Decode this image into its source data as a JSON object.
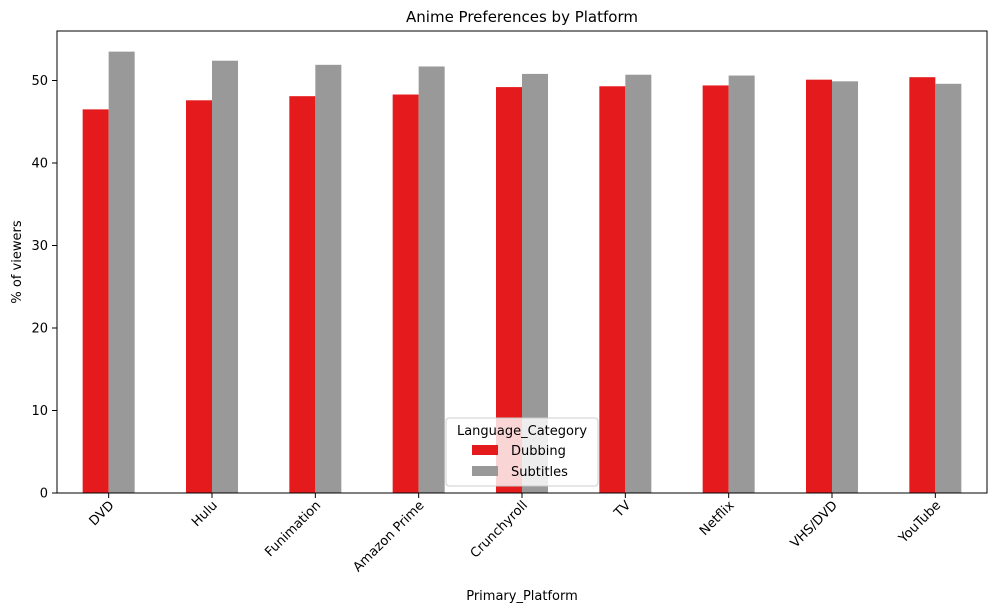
{
  "chart_data": {
    "type": "bar",
    "title": "Anime Preferences by Platform",
    "xlabel": "Primary_Platform",
    "ylabel": "% of viewers",
    "categories": [
      "DVD",
      "Hulu",
      "Funimation",
      "Amazon Prime",
      "Crunchyroll",
      "TV",
      "Netflix",
      "VHS/DVD",
      "YouTube"
    ],
    "series": [
      {
        "name": "Dubbing",
        "color": "#e41a1c",
        "values": [
          46.5,
          47.6,
          48.1,
          48.3,
          49.2,
          49.3,
          49.4,
          50.1,
          50.4
        ]
      },
      {
        "name": "Subtitles",
        "color": "#999999",
        "values": [
          53.5,
          52.4,
          51.9,
          51.7,
          50.8,
          50.7,
          50.6,
          49.9,
          49.6
        ]
      }
    ],
    "ylim": [
      0,
      56
    ],
    "yticks": [
      0,
      10,
      20,
      30,
      40,
      50
    ],
    "grid": false,
    "legend": {
      "title": "Language_Category",
      "placement": "lower-center"
    },
    "xtick_rotation_deg": 45
  }
}
